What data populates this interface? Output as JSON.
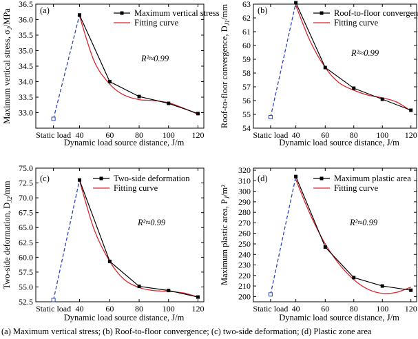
{
  "chart_data": [
    {
      "type": "line",
      "panel_label": "(a)",
      "xlabel": "Dynamic load source distance, J/m",
      "ylabel": "Maximum vertical stress, σ",
      "ylabel_sub": "J",
      "ylabel_unit": "/MPa",
      "categories": [
        "Static load",
        "40",
        "60",
        "80",
        "100",
        "120"
      ],
      "yticks": [
        "33.0",
        "33.5",
        "34.0",
        "34.5",
        "35.0",
        "35.5",
        "36.0",
        "36.5"
      ],
      "ylim": [
        32.5,
        36.5
      ],
      "static_value": 32.8,
      "series": [
        {
          "name": "Maximum vertical stress",
          "x": [
            40,
            60,
            80,
            100,
            120
          ],
          "values": [
            36.15,
            34.0,
            33.52,
            33.3,
            32.97
          ]
        },
        {
          "name": "Fitting curve",
          "x": [
            40,
            50,
            60,
            70,
            80,
            90,
            100,
            110,
            120
          ],
          "values": [
            36.12,
            34.65,
            33.92,
            33.57,
            33.42,
            33.39,
            33.32,
            33.15,
            32.95
          ]
        }
      ],
      "annotation": "R²≈0.99",
      "colors": {
        "measured": "#000000",
        "fit": "#d8252e",
        "static_link": "#2b46b8"
      }
    },
    {
      "type": "line",
      "panel_label": "(b)",
      "xlabel": "Dynamic load source distance, J/m",
      "ylabel": "Roof-to-floor convergence, D",
      "ylabel_sub": "J1",
      "ylabel_unit": "/mm",
      "categories": [
        "Static load",
        "40",
        "60",
        "80",
        "100",
        "120"
      ],
      "yticks": [
        "54",
        "55",
        "56",
        "57",
        "58",
        "59",
        "60",
        "61",
        "62",
        "63"
      ],
      "ylim": [
        54,
        63
      ],
      "static_value": 54.8,
      "series": [
        {
          "name": "Roof-to-floor convergen",
          "x": [
            40,
            60,
            80,
            100,
            120
          ],
          "values": [
            63.1,
            58.4,
            56.9,
            56.1,
            55.3
          ]
        },
        {
          "name": "Fitting curve",
          "x": [
            40,
            50,
            60,
            70,
            80,
            90,
            100,
            110,
            120
          ],
          "values": [
            62.9,
            60.3,
            58.4,
            57.3,
            56.75,
            56.4,
            56.2,
            55.9,
            55.25
          ]
        }
      ],
      "annotation": "R²≈0.99",
      "colors": {
        "measured": "#000000",
        "fit": "#d8252e",
        "static_link": "#2b46b8"
      }
    },
    {
      "type": "line",
      "panel_label": "(c)",
      "xlabel": "Dynamic load source distance, J/m",
      "ylabel": "Two-side deformation, D",
      "ylabel_sub": "J2",
      "ylabel_unit": "/mm",
      "categories": [
        "Static load",
        "40",
        "60",
        "80",
        "100",
        "120"
      ],
      "yticks": [
        "52.5",
        "55.0",
        "57.5",
        "60.0",
        "62.5",
        "65.0",
        "67.5",
        "70.0",
        "72.5",
        "75.0"
      ],
      "ylim": [
        52.5,
        75.0
      ],
      "static_value": 52.8,
      "series": [
        {
          "name": "Two-side deformation",
          "x": [
            40,
            60,
            80,
            100,
            120
          ],
          "values": [
            73.0,
            59.3,
            55.1,
            54.4,
            53.3
          ]
        },
        {
          "name": "Fitting curve",
          "x": [
            40,
            50,
            60,
            70,
            80,
            90,
            100,
            110,
            120
          ],
          "values": [
            72.9,
            64.6,
            59.3,
            56.3,
            54.9,
            54.4,
            54.25,
            54.0,
            53.3
          ]
        }
      ],
      "annotation": "R²≈0.99",
      "colors": {
        "measured": "#000000",
        "fit": "#d8252e",
        "static_link": "#2b46b8"
      }
    },
    {
      "type": "line",
      "panel_label": "(d)",
      "xlabel": "Dynamic load source distance, J/m",
      "ylabel": "Maximum plastic area, P",
      "ylabel_sub": "J",
      "ylabel_unit": "/m²",
      "categories": [
        "Static load",
        "40",
        "60",
        "80",
        "100",
        "120"
      ],
      "yticks": [
        "200",
        "210",
        "220",
        "230",
        "240",
        "250",
        "260",
        "270",
        "280",
        "290",
        "300",
        "310",
        "320"
      ],
      "ylim": [
        195,
        322
      ],
      "static_value": 202,
      "series": [
        {
          "name": "Maximum plastic area",
          "x": [
            40,
            60,
            80,
            100,
            120
          ],
          "values": [
            314,
            247,
            218,
            210,
            206
          ]
        },
        {
          "name": "Fitting curve",
          "x": [
            40,
            50,
            60,
            70,
            80,
            90,
            100,
            110,
            120
          ],
          "values": [
            311,
            278,
            250,
            231,
            216,
            207,
            203,
            204,
            209
          ]
        }
      ],
      "annotation": "R²≈0.99",
      "colors": {
        "measured": "#000000",
        "fit": "#d8252e",
        "static_link": "#2b46b8"
      }
    }
  ],
  "caption": "(a) Maximum vertical stress; (b) Roof-to-floor convergence; (c) two-side deformation; (d) Plastic zone area"
}
